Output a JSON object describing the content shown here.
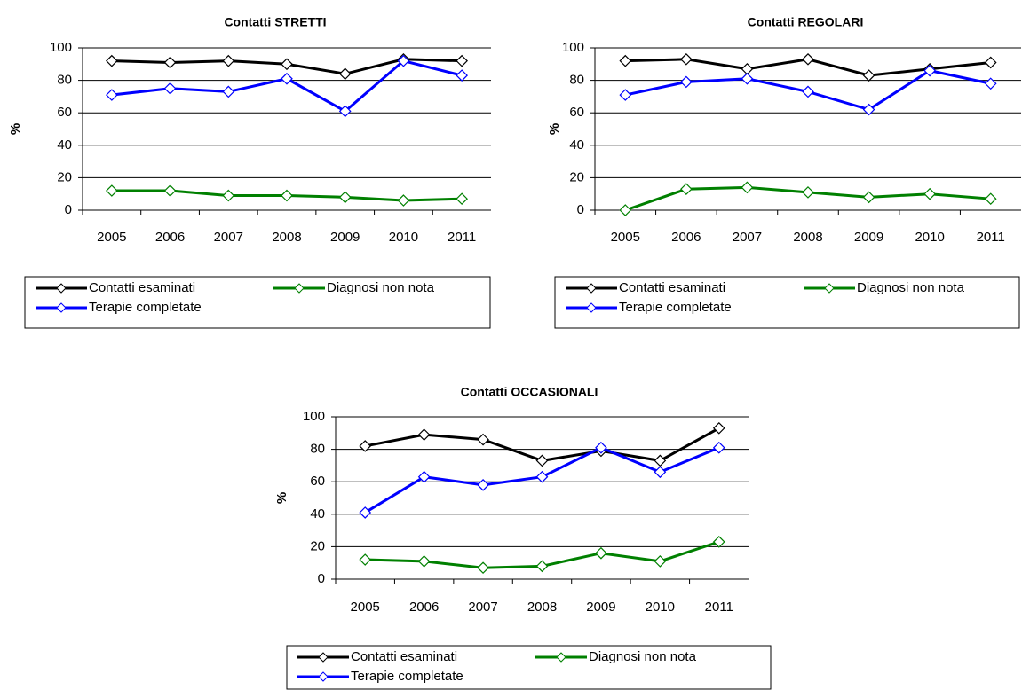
{
  "chart_data": [
    {
      "type": "line",
      "title": "Contatti STRETTI",
      "y_label": "%",
      "categories": [
        "2005",
        "2006",
        "2007",
        "2008",
        "2009",
        "2010",
        "2011"
      ],
      "series": [
        {
          "name": "Contatti esaminati",
          "color": "#000000",
          "values": [
            92,
            91,
            92,
            90,
            84,
            93,
            92
          ]
        },
        {
          "name": "Diagnosi non nota",
          "color": "#008000",
          "values": [
            12,
            12,
            9,
            9,
            8,
            6,
            7
          ]
        },
        {
          "name": "Terapie completate",
          "color": "#0000ff",
          "values": [
            71,
            75,
            73,
            81,
            61,
            92,
            83
          ]
        }
      ],
      "ylim": [
        0,
        100
      ],
      "yticks": [
        0,
        20,
        40,
        60,
        80,
        100
      ],
      "grid": true
    },
    {
      "type": "line",
      "title": "Contatti REGOLARI",
      "y_label": "%",
      "categories": [
        "2005",
        "2006",
        "2007",
        "2008",
        "2009",
        "2010",
        "2011"
      ],
      "series": [
        {
          "name": "Contatti esaminati",
          "color": "#000000",
          "values": [
            92,
            93,
            87,
            93,
            83,
            87,
            91
          ]
        },
        {
          "name": "Diagnosi non nota",
          "color": "#008000",
          "values": [
            0,
            13,
            14,
            11,
            8,
            10,
            7
          ]
        },
        {
          "name": "Terapie completate",
          "color": "#0000ff",
          "values": [
            71,
            79,
            81,
            73,
            62,
            86,
            78
          ]
        }
      ],
      "ylim": [
        0,
        100
      ],
      "yticks": [
        0,
        20,
        40,
        60,
        80,
        100
      ],
      "grid": true
    },
    {
      "type": "line",
      "title": "Contatti OCCASIONALI",
      "y_label": "%",
      "categories": [
        "2005",
        "2006",
        "2007",
        "2008",
        "2009",
        "2010",
        "2011"
      ],
      "series": [
        {
          "name": "Contatti esaminati",
          "color": "#000000",
          "values": [
            82,
            89,
            86,
            73,
            79,
            73,
            93
          ]
        },
        {
          "name": "Diagnosi non nota",
          "color": "#008000",
          "values": [
            12,
            11,
            7,
            8,
            16,
            11,
            23
          ]
        },
        {
          "name": "Terapie completate",
          "color": "#0000ff",
          "values": [
            41,
            63,
            58,
            63,
            81,
            66,
            81
          ]
        }
      ],
      "ylim": [
        0,
        100
      ],
      "yticks": [
        0,
        20,
        40,
        60,
        80,
        100
      ],
      "grid": true
    }
  ]
}
